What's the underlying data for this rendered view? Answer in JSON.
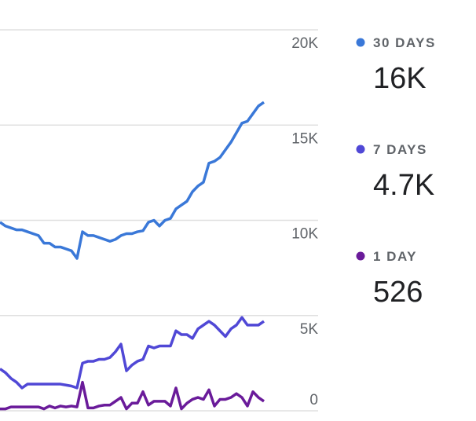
{
  "chart_data": {
    "type": "line",
    "categories": [
      null,
      null,
      null,
      null,
      null,
      null,
      null,
      null,
      null,
      null,
      null,
      null,
      null,
      null,
      null,
      null,
      null,
      null,
      null,
      null,
      null,
      null,
      null,
      null,
      null,
      null,
      null,
      null,
      null,
      null,
      null,
      null,
      null,
      null,
      null,
      null,
      null,
      null,
      null,
      null,
      null,
      null,
      null,
      null,
      null,
      null,
      null,
      null,
      null
    ],
    "ylim": [
      0,
      20000
    ],
    "yticks": [
      {
        "value": 20000,
        "label": "20K"
      },
      {
        "value": 15000,
        "label": "15K"
      },
      {
        "value": 10000,
        "label": "10K"
      },
      {
        "value": 5000,
        "label": "5K"
      },
      0
    ],
    "grid": true,
    "series": [
      {
        "name": "30 DAYS",
        "color": "#3a78d8",
        "summary": "16K",
        "values": [
          9900,
          9700,
          9600,
          9500,
          9500,
          9400,
          9300,
          9200,
          8800,
          8800,
          8600,
          8600,
          8500,
          8400,
          8000,
          9400,
          9200,
          9200,
          9100,
          9000,
          8900,
          9000,
          9200,
          9300,
          9300,
          9400,
          9450,
          9900,
          10000,
          9700,
          10000,
          10100,
          10600,
          10800,
          11000,
          11500,
          11800,
          12000,
          13000,
          13100,
          13300,
          13700,
          14100,
          14600,
          15100,
          15200,
          15600,
          16000,
          16200
        ]
      },
      {
        "name": "7 DAYS",
        "color": "#5048d6",
        "summary": "4.7K",
        "values": [
          2200,
          2000,
          1700,
          1500,
          1200,
          1400,
          1400,
          1400,
          1400,
          1400,
          1400,
          1400,
          1350,
          1300,
          1200,
          2500,
          2600,
          2600,
          2700,
          2700,
          2800,
          3100,
          3500,
          2100,
          2400,
          2600,
          2700,
          3400,
          3300,
          3400,
          3400,
          3400,
          4200,
          4000,
          4000,
          3800,
          4300,
          4500,
          4700,
          4500,
          4200,
          3900,
          4300,
          4500,
          4900,
          4500,
          4500,
          4500,
          4700
        ]
      },
      {
        "name": "1 DAY",
        "color": "#6a1b9a",
        "summary": "526",
        "values": [
          100,
          100,
          200,
          200,
          200,
          200,
          200,
          200,
          100,
          250,
          150,
          250,
          200,
          250,
          200,
          1500,
          150,
          150,
          250,
          300,
          300,
          500,
          700,
          100,
          400,
          400,
          1000,
          300,
          500,
          500,
          500,
          250,
          1200,
          100,
          400,
          600,
          700,
          600,
          1100,
          250,
          600,
          600,
          700,
          900,
          700,
          250,
          1000,
          700,
          500
        ]
      }
    ]
  }
}
